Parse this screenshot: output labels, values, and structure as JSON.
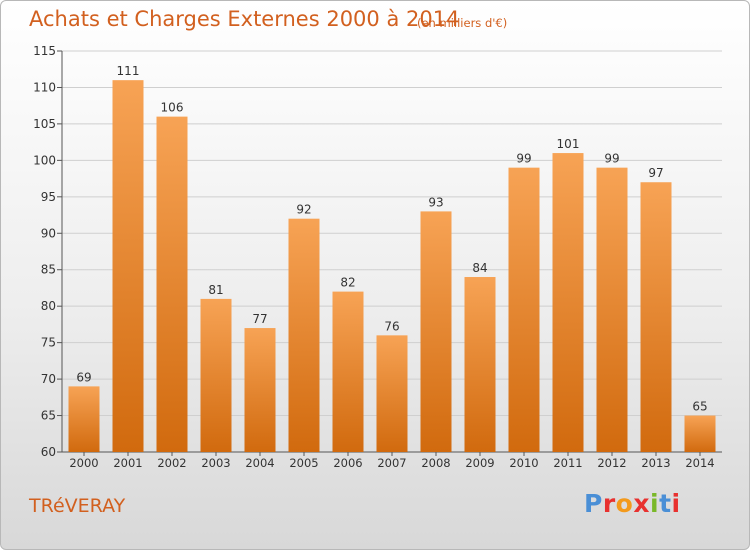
{
  "header": {
    "title": "Achats et Charges Externes 2000 à 2014",
    "subtitle": "(en milliers d'€)"
  },
  "footer": {
    "commune": "TRéVERAY",
    "logo_text": "Proxiti",
    "logo_colors": [
      "#4a8fd6",
      "#e8312f",
      "#f39a1c",
      "#e8312f",
      "#7ab829",
      "#4a8fd6",
      "#e8312f"
    ]
  },
  "colors": {
    "bar_top": "#f7a355",
    "bar_bottom": "#d16a0e",
    "text_accent": "#d2601f",
    "grid": "#cfcfcf"
  },
  "chart_data": {
    "type": "bar",
    "title": "Achats et Charges Externes 2000 à 2014",
    "categories": [
      "2000",
      "2001",
      "2002",
      "2003",
      "2004",
      "2005",
      "2006",
      "2007",
      "2008",
      "2009",
      "2010",
      "2011",
      "2012",
      "2013",
      "2014"
    ],
    "values": [
      69,
      111,
      106,
      81,
      77,
      92,
      82,
      76,
      93,
      84,
      99,
      101,
      99,
      97,
      65
    ],
    "ylim": [
      60,
      115
    ],
    "yticks": [
      60,
      65,
      70,
      75,
      80,
      85,
      90,
      95,
      100,
      105,
      110,
      115
    ],
    "grid": true,
    "xlabel": "",
    "ylabel": ""
  }
}
